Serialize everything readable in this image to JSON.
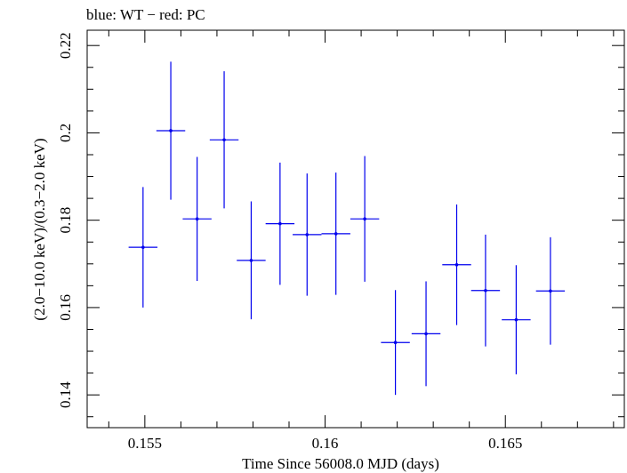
{
  "chart_data": {
    "type": "scatter",
    "title": "blue: WT − red: PC",
    "xlabel": "Time Since 56008.0 MJD (days)",
    "ylabel": "(2.0−10.0 keV)/(0.3−2.0 keV)",
    "xlim": [
      0.1534,
      0.1683
    ],
    "ylim": [
      0.1325,
      0.2235
    ],
    "xticks": [
      0.155,
      0.16,
      0.165
    ],
    "xtick_labels": [
      "0.155",
      "0.16",
      "0.165"
    ],
    "yticks": [
      0.14,
      0.16,
      0.18,
      0.2,
      0.22
    ],
    "ytick_labels": [
      "0.14",
      "0.16",
      "0.18",
      "0.2",
      "0.22"
    ],
    "grid": false,
    "series": [
      {
        "name": "WT",
        "color": "#0000ee",
        "points": [
          {
            "x": 0.15495,
            "xerr": 0.0004,
            "y": 0.1738,
            "yerr_low": 0.0138,
            "yerr_high": 0.0138
          },
          {
            "x": 0.15572,
            "xerr": 0.0004,
            "y": 0.2005,
            "yerr_low": 0.0158,
            "yerr_high": 0.0158
          },
          {
            "x": 0.15645,
            "xerr": 0.0004,
            "y": 0.1803,
            "yerr_low": 0.0142,
            "yerr_high": 0.0142
          },
          {
            "x": 0.1572,
            "xerr": 0.0004,
            "y": 0.1984,
            "yerr_low": 0.0157,
            "yerr_high": 0.0157
          },
          {
            "x": 0.15795,
            "xerr": 0.0004,
            "y": 0.1708,
            "yerr_low": 0.0135,
            "yerr_high": 0.0135
          },
          {
            "x": 0.15875,
            "xerr": 0.0004,
            "y": 0.1792,
            "yerr_low": 0.014,
            "yerr_high": 0.014
          },
          {
            "x": 0.1595,
            "xerr": 0.0004,
            "y": 0.1767,
            "yerr_low": 0.014,
            "yerr_high": 0.014
          },
          {
            "x": 0.1603,
            "xerr": 0.0004,
            "y": 0.1769,
            "yerr_low": 0.014,
            "yerr_high": 0.014
          },
          {
            "x": 0.1611,
            "xerr": 0.0004,
            "y": 0.1803,
            "yerr_low": 0.0144,
            "yerr_high": 0.0144
          },
          {
            "x": 0.16195,
            "xerr": 0.0004,
            "y": 0.152,
            "yerr_low": 0.012,
            "yerr_high": 0.012
          },
          {
            "x": 0.1628,
            "xerr": 0.0004,
            "y": 0.154,
            "yerr_low": 0.012,
            "yerr_high": 0.012
          },
          {
            "x": 0.16365,
            "xerr": 0.0004,
            "y": 0.1698,
            "yerr_low": 0.0138,
            "yerr_high": 0.0138
          },
          {
            "x": 0.16445,
            "xerr": 0.0004,
            "y": 0.1639,
            "yerr_low": 0.0128,
            "yerr_high": 0.0128
          },
          {
            "x": 0.1653,
            "xerr": 0.0004,
            "y": 0.1572,
            "yerr_low": 0.0125,
            "yerr_high": 0.0125
          },
          {
            "x": 0.16625,
            "xerr": 0.0004,
            "y": 0.1638,
            "yerr_low": 0.0123,
            "yerr_high": 0.0123
          }
        ]
      }
    ]
  }
}
